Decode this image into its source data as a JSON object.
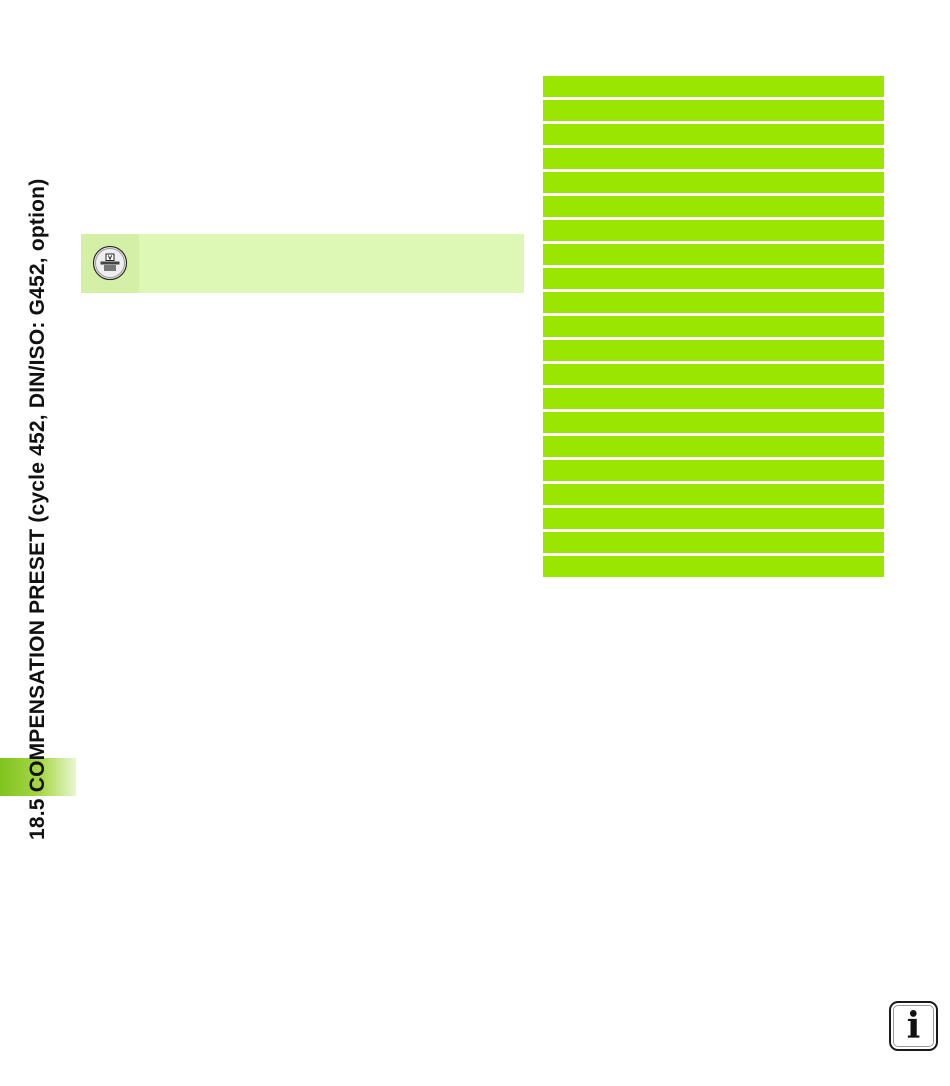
{
  "sidebar": {
    "chapter_heading": "18.5 COMPENSATION PRESET (cycle 452, DIN/ISO: G452, option)"
  },
  "note": {
    "icon": "machine-manufacturer-icon"
  },
  "table": {
    "row_count": 21,
    "row_color": "#9ae600"
  },
  "footer": {
    "info_icon": "info-icon",
    "info_glyph": "i"
  },
  "colors": {
    "accent_green": "#9ae600",
    "note_background": "#ddf7b4",
    "tab_green": "#7fc31c"
  }
}
